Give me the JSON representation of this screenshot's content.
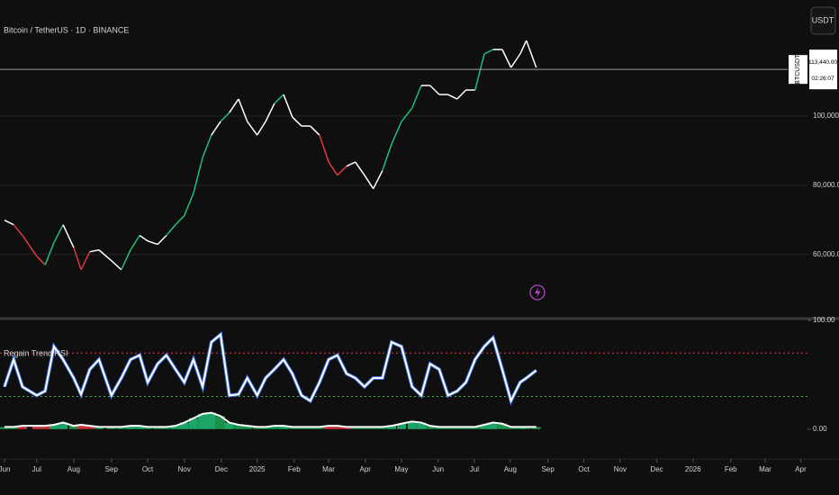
{
  "header": {
    "currency_button": "USDT"
  },
  "chart_data": [
    {
      "type": "line",
      "title": "Bitcoin / TetherUS · 1D · BINANCE",
      "xlim": [
        0,
        22
      ],
      "xticks": [
        {
          "value": 0,
          "label": "Jun"
        },
        {
          "value": 0.88,
          "label": "Jul"
        },
        {
          "value": 1.89,
          "label": "Aug"
        },
        {
          "value": 2.92,
          "label": "Sep"
        },
        {
          "value": 3.91,
          "label": "Oct"
        },
        {
          "value": 4.91,
          "label": "Nov"
        },
        {
          "value": 5.92,
          "label": "Dec"
        },
        {
          "value": 6.9,
          "label": "2025"
        },
        {
          "value": 7.91,
          "label": "Feb"
        },
        {
          "value": 8.85,
          "label": "Mar"
        },
        {
          "value": 9.85,
          "label": "Apr"
        },
        {
          "value": 10.84,
          "label": "May"
        },
        {
          "value": 11.84,
          "label": "Jun"
        },
        {
          "value": 12.83,
          "label": "Jul"
        },
        {
          "value": 13.81,
          "label": "Aug"
        },
        {
          "value": 14.84,
          "label": "Sep"
        },
        {
          "value": 15.82,
          "label": "Oct"
        },
        {
          "value": 16.81,
          "label": "Nov"
        },
        {
          "value": 17.81,
          "label": "Dec"
        },
        {
          "value": 18.8,
          "label": "2026"
        },
        {
          "value": 19.83,
          "label": "Feb"
        },
        {
          "value": 20.77,
          "label": "Mar"
        },
        {
          "value": 21.74,
          "label": "Apr"
        }
      ],
      "ylim": [
        42000,
        133500
      ],
      "yticks": [
        {
          "value": 60000,
          "label": "60,000.00"
        },
        {
          "value": 80000,
          "label": "80,000.00"
        },
        {
          "value": 100000,
          "label": "100,000.00"
        }
      ],
      "grid": true,
      "x": [
        0,
        0.25,
        0.49,
        0.88,
        1.11,
        1.35,
        1.6,
        1.89,
        2.09,
        2.33,
        2.58,
        2.92,
        3.19,
        3.44,
        3.69,
        3.91,
        4.18,
        4.42,
        4.67,
        4.91,
        5.16,
        5.41,
        5.65,
        5.9,
        6.14,
        6.39,
        6.63,
        6.9,
        7.13,
        7.37,
        7.62,
        7.86,
        8.11,
        8.35,
        8.6,
        8.85,
        9.09,
        9.34,
        9.58,
        9.83,
        10.07,
        10.32,
        10.57,
        10.84,
        11.13,
        11.38,
        11.62,
        11.87,
        12.11,
        12.36,
        12.6,
        12.85,
        13.1,
        13.34,
        13.59,
        13.83,
        14.08,
        14.25,
        14.52
      ],
      "series": [
        {
          "values": [
            69900,
            68600,
            65500,
            59500,
            57000,
            63400,
            68600,
            62000,
            55600,
            60800,
            61300,
            58200,
            55600,
            61300,
            65500,
            63900,
            62900,
            65500,
            68600,
            71200,
            77700,
            88000,
            94500,
            98400,
            101000,
            104900,
            98400,
            94500,
            98400,
            103600,
            106200,
            99700,
            97100,
            97100,
            94500,
            86700,
            82900,
            85500,
            86700,
            82900,
            79000,
            84200,
            91900,
            98400,
            102300,
            108800,
            108800,
            106200,
            106200,
            104900,
            107500,
            107500,
            117900,
            119200,
            119200,
            114000,
            117900,
            121800,
            114000
          ],
          "colors": [
            "#ffffff",
            "#ffffff",
            "#e0393e",
            "#e0393e",
            "#e0393e",
            "#1fbf75",
            "#1fbf75",
            "#ffffff",
            "#e0393e",
            "#e0393e",
            "#ffffff",
            "#ffffff",
            "#ffffff",
            "#1fbf75",
            "#1fbf75",
            "#ffffff",
            "#ffffff",
            "#ffffff",
            "#1fbf75",
            "#1fbf75",
            "#1fbf75",
            "#1fbf75",
            "#1fbf75",
            "#ffffff",
            "#1fbf75",
            "#ffffff",
            "#ffffff",
            "#ffffff",
            "#ffffff",
            "#ffffff",
            "#1fbf75",
            "#ffffff",
            "#ffffff",
            "#ffffff",
            "#ffffff",
            "#e0393e",
            "#e0393e",
            "#e0393e",
            "#ffffff",
            "#ffffff",
            "#ffffff",
            "#ffffff",
            "#1fbf75",
            "#1fbf75",
            "#1fbf75",
            "#1fbf75",
            "#ffffff",
            "#ffffff",
            "#ffffff",
            "#ffffff",
            "#ffffff",
            "#ffffff",
            "#1fbf75",
            "#1fbf75",
            "#ffffff",
            "#ffffff",
            "#ffffff",
            "#ffffff",
            "#ffffff"
          ]
        }
      ],
      "last_price": {
        "symbol": "BTCUSDT",
        "value": 113440,
        "label": "113,440.00",
        "countdown": "02:26:07",
        "color": "#9e9e9e"
      }
    },
    {
      "type": "line",
      "title": "Regain Trend RSI",
      "xlim": [
        0,
        22
      ],
      "ylim": [
        -25,
        100
      ],
      "yticks": [
        {
          "value": 0,
          "label": "0.00"
        },
        {
          "value": 100,
          "label": "100.00"
        }
      ],
      "levels": [
        {
          "value": 70,
          "color": "#f23645"
        },
        {
          "value": 30,
          "color": "#4caf50"
        }
      ],
      "series": [
        {
          "color": "#ffffff",
          "glow": "#3d6fd6",
          "values": [
            39,
            64,
            39,
            31,
            35,
            76,
            64,
            47,
            32,
            55,
            64,
            31,
            47,
            64,
            68,
            43,
            60,
            68,
            55,
            43,
            64,
            39,
            80,
            87,
            31,
            32,
            47,
            31,
            47,
            55,
            64,
            51,
            31,
            26,
            43,
            64,
            68,
            51,
            47,
            39,
            47,
            47,
            80,
            76,
            39,
            31,
            60,
            55,
            31,
            35,
            43,
            64,
            76,
            84,
            55,
            26,
            43,
            47,
            54
          ]
        }
      ],
      "histogram": {
        "color": "#1fa855",
        "values": [
          2,
          2,
          3,
          3,
          3,
          4,
          6,
          3,
          4,
          3,
          2,
          2,
          2,
          3,
          3,
          2,
          2,
          2,
          3,
          6,
          10,
          14,
          15,
          12,
          6,
          4,
          3,
          2,
          2,
          3,
          3,
          2,
          2,
          2,
          2,
          3,
          3,
          2,
          2,
          2,
          2,
          2,
          3,
          5,
          7,
          6,
          3,
          2,
          2,
          2,
          2,
          2,
          4,
          6,
          5,
          2,
          2,
          2,
          2
        ]
      }
    }
  ]
}
